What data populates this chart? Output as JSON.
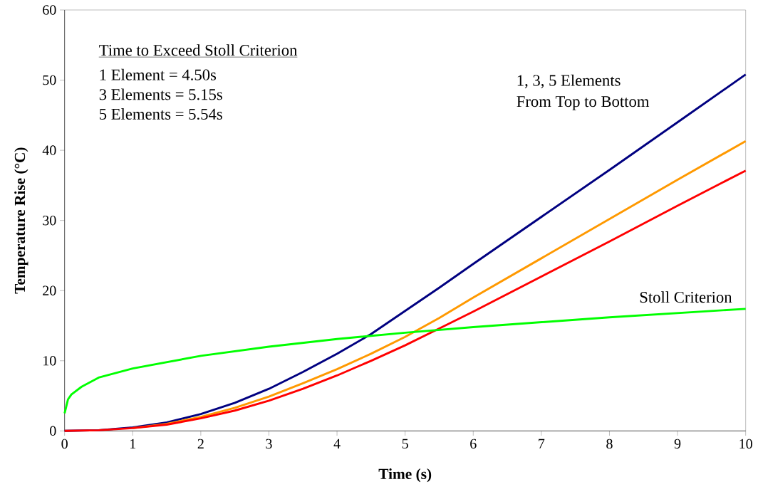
{
  "chart_data": {
    "type": "line",
    "xlabel": "Time (s)",
    "ylabel": "Temperature Rise (°C)",
    "xlim": [
      0,
      10
    ],
    "ylim": [
      0,
      60
    ],
    "xticks": [
      0,
      1,
      2,
      3,
      4,
      5,
      6,
      7,
      8,
      9,
      10
    ],
    "yticks": [
      0,
      10,
      20,
      30,
      40,
      50,
      60
    ],
    "grid": false,
    "series": [
      {
        "color": "#000080",
        "x": [
          0,
          0.5,
          1,
          1.5,
          2,
          2.5,
          3,
          3.5,
          4,
          4.5,
          5,
          5.5,
          6,
          7,
          8,
          9,
          10
        ],
        "values": [
          0,
          0.1,
          0.5,
          1.2,
          2.4,
          4.0,
          6.0,
          8.4,
          11.0,
          13.8,
          17.1,
          20.4,
          23.8,
          30.5,
          37.2,
          44.0,
          50.8
        ]
      },
      {
        "color": "#ff9900",
        "x": [
          1,
          1.5,
          2,
          2.5,
          3,
          3.5,
          4,
          4.5,
          5,
          5.5,
          6,
          7,
          8,
          9,
          10
        ],
        "values": [
          0.4,
          1.0,
          2.0,
          3.3,
          4.9,
          6.8,
          8.8,
          11.0,
          13.4,
          16.1,
          19.0,
          24.6,
          30.2,
          35.8,
          41.3
        ]
      },
      {
        "color": "#ff0000",
        "x": [
          0,
          0.5,
          1,
          1.5,
          2,
          2.5,
          3,
          3.5,
          4,
          4.5,
          5,
          5.5,
          6,
          7,
          8,
          9,
          10
        ],
        "values": [
          0,
          0.1,
          0.4,
          0.9,
          1.8,
          2.9,
          4.3,
          6.0,
          7.9,
          10.0,
          12.2,
          14.6,
          17.0,
          22.0,
          27.0,
          32.1,
          37.1
        ]
      },
      {
        "name": "Stoll Criterion",
        "color": "#00ff00",
        "x": [
          0,
          0.05,
          0.1,
          0.25,
          0.5,
          1,
          2,
          3,
          4,
          5,
          6,
          7,
          8,
          9,
          10
        ],
        "values": [
          2.5,
          4.5,
          5.2,
          6.3,
          7.6,
          8.9,
          10.7,
          12.0,
          13.1,
          14.0,
          14.8,
          15.5,
          16.2,
          16.8,
          17.4
        ]
      }
    ],
    "annotations": [
      "Time to Exceed Stoll Criterion",
      "1 Element   = 4.50s",
      "3 Elements = 5.15s",
      "5 Elements = 5.54s",
      "1, 3, 5 Elements",
      "From Top to Bottom"
    ]
  }
}
